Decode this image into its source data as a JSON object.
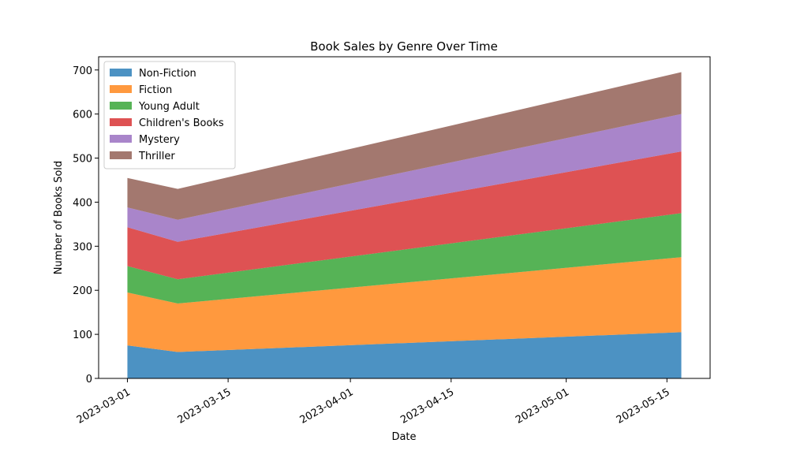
{
  "chart_data": {
    "type": "area",
    "stacked": true,
    "title": "Book Sales by Genre Over Time",
    "xlabel": "Date",
    "ylabel": "Number of Books Sold",
    "x": [
      "2023-03-01",
      "2023-03-08",
      "2023-05-17"
    ],
    "x_ticks": [
      "2023-03-01",
      "2023-03-15",
      "2023-04-01",
      "2023-04-15",
      "2023-05-01",
      "2023-05-15"
    ],
    "xlim": [
      "2023-02-25",
      "2023-05-21"
    ],
    "ylim": [
      0,
      730
    ],
    "y_ticks": [
      0,
      100,
      200,
      300,
      400,
      500,
      600,
      700
    ],
    "grid": false,
    "legend_position": "top-left",
    "series": [
      {
        "name": "Non-Fiction",
        "color": "#1f77b4",
        "values": [
          75,
          60,
          105
        ]
      },
      {
        "name": "Fiction",
        "color": "#ff7f0e",
        "values": [
          120,
          110,
          170
        ]
      },
      {
        "name": "Young Adult",
        "color": "#2ca02c",
        "values": [
          60,
          55,
          100
        ]
      },
      {
        "name": "Children's Books",
        "color": "#d62728",
        "values": [
          88,
          85,
          140
        ]
      },
      {
        "name": "Mystery",
        "color": "#9467bd",
        "values": [
          45,
          50,
          85
        ]
      },
      {
        "name": "Thriller",
        "color": "#8c564b",
        "values": [
          67,
          70,
          95
        ]
      }
    ]
  }
}
